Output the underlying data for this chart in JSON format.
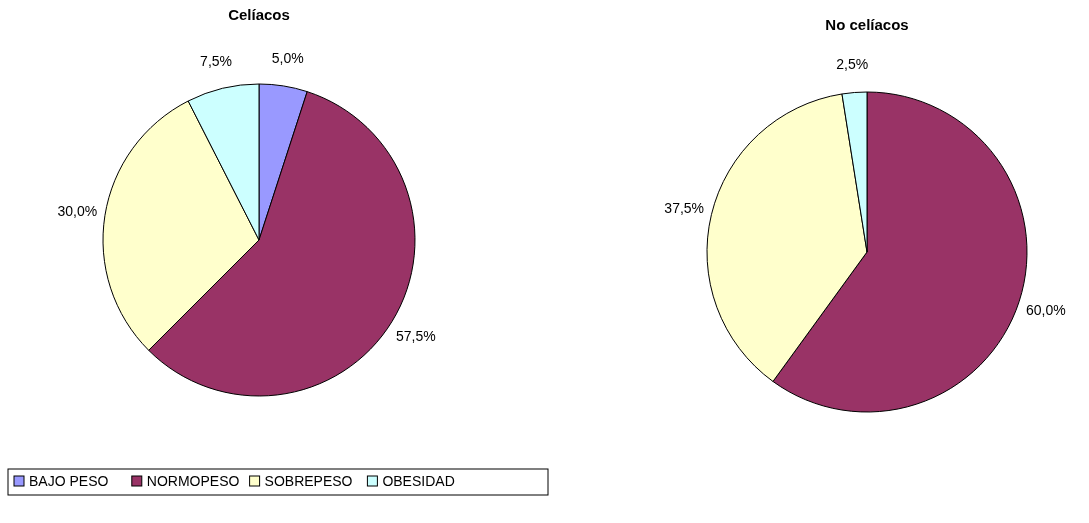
{
  "chart_data": [
    {
      "type": "pie",
      "title": "Celíacos",
      "categories": [
        "BAJO PESO",
        "NORMOPESO",
        "SOBREPESO",
        "OBESIDAD"
      ],
      "values": [
        5.0,
        57.5,
        30.0,
        7.5
      ],
      "colors": [
        "#9999ff",
        "#993366",
        "#ffffcc",
        "#ccffff"
      ],
      "value_labels": [
        "5,0%",
        "57,5%",
        "30,0%",
        "7,5%"
      ],
      "legend": "bottom left"
    },
    {
      "type": "pie",
      "title": "No celíacos",
      "categories": [
        null,
        null,
        null
      ],
      "values": [
        60.0,
        37.5,
        2.5
      ],
      "colors": [
        "#993366",
        "#ffffcc",
        "#ccffff"
      ],
      "value_labels": [
        "60,0%",
        "37,5%",
        "2,5%"
      ],
      "legend": false
    }
  ]
}
